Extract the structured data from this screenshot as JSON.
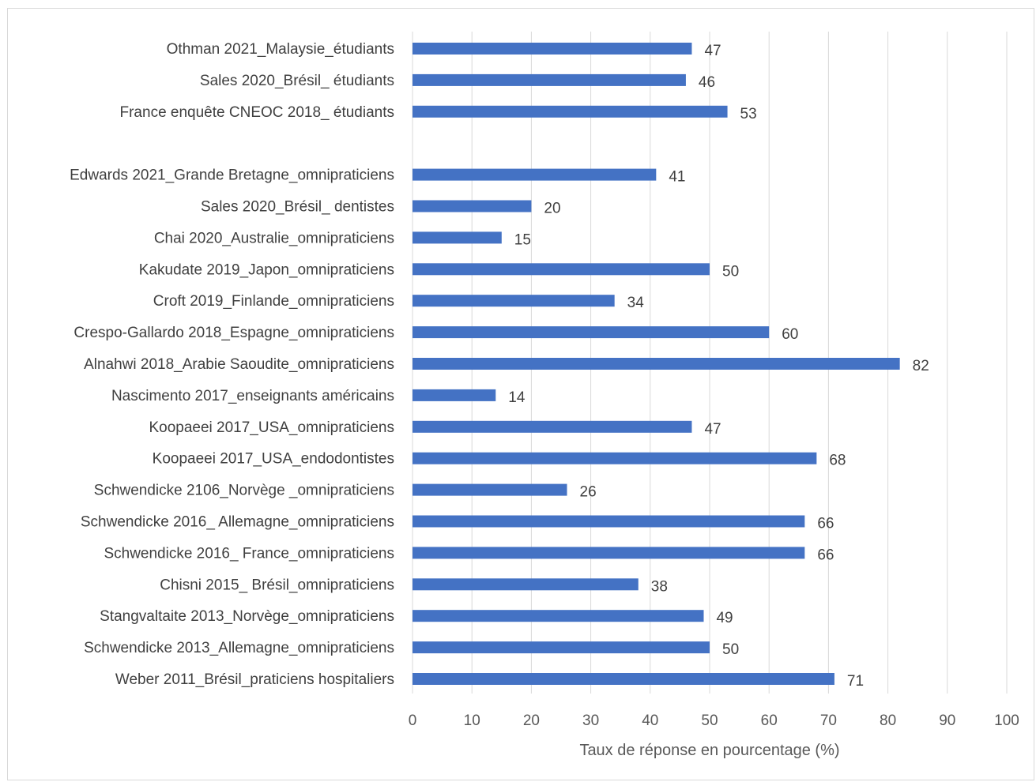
{
  "chart_data": {
    "type": "bar",
    "orientation": "horizontal",
    "categories": [
      "Othman 2021_Malaysie_étudiants",
      "Sales 2020_Brésil_ étudiants",
      "France enquête CNEOC 2018_ étudiants",
      "",
      "Edwards 2021_Grande Bretagne_omnipraticiens",
      "Sales 2020_Brésil_ dentistes",
      "Chai 2020_Australie_omnipraticiens",
      "Kakudate 2019_Japon_omnipraticiens",
      "Croft 2019_Finlande_omnipraticiens",
      "Crespo-Gallardo 2018_Espagne_omnipraticiens",
      "Alnahwi 2018_Arabie Saoudite_omnipraticiens",
      "Nascimento 2017_enseignants américains",
      "Koopaeei 2017_USA_omnipraticiens",
      "Koopaeei 2017_USA_endodontistes",
      "Schwendicke 2106_Norvège _omnipraticiens",
      "Schwendicke 2016_ Allemagne_omnipraticiens",
      "Schwendicke 2016_ France_omnipraticiens",
      "Chisni 2015_ Brésil_omnipraticiens",
      "Stangvaltaite 2013_Norvège_omnipraticiens",
      "Schwendicke 2013_Allemagne_omnipraticiens",
      "Weber 2011_Brésil_praticiens hospitaliers"
    ],
    "values": [
      47,
      46,
      53,
      null,
      41,
      20,
      15,
      50,
      34,
      60,
      82,
      14,
      47,
      68,
      26,
      66,
      66,
      38,
      49,
      50,
      71
    ],
    "data_labels": [
      "47",
      "46",
      "53",
      "",
      "41",
      "20",
      "15",
      "50",
      "34",
      "60",
      "82",
      "14",
      "47",
      "68",
      "26",
      "66",
      "66",
      "38",
      "49",
      "50",
      "71"
    ],
    "xlabel": "Taux de réponse en pourcentage (%)",
    "ylabel": "",
    "title": "",
    "xlim": [
      0,
      100
    ],
    "x_ticks": [
      "0",
      "10",
      "20",
      "30",
      "40",
      "50",
      "60",
      "70",
      "80",
      "90",
      "100"
    ],
    "grid": "vertical",
    "legend": "none",
    "colors": {
      "bar": "#4472c4",
      "grid": "#d9d9d9",
      "text": "#404040",
      "tick_text": "#595959",
      "border": "#d9d9d9"
    }
  }
}
